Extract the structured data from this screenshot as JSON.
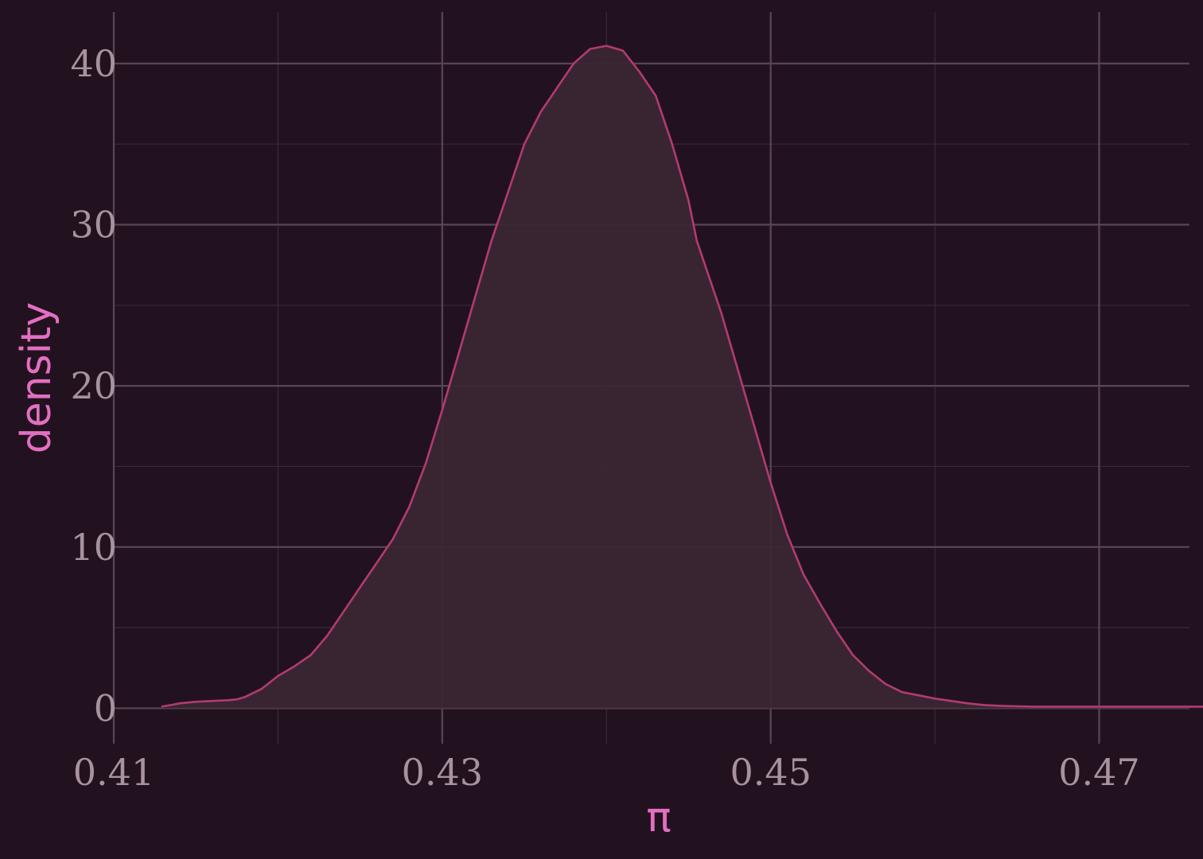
{
  "chart_data": {
    "type": "area",
    "title": "",
    "xlabel": "π",
    "ylabel": "density",
    "xlim": [
      0.41,
      0.4755
    ],
    "ylim": [
      -2.2,
      43.2
    ],
    "x_ticks": [
      0.41,
      0.43,
      0.45,
      0.47
    ],
    "x_tick_labels": [
      "0.41",
      "0.43",
      "0.45",
      "0.47"
    ],
    "x_minor_ticks": [
      0.42,
      0.44,
      0.46,
      0.48
    ],
    "y_ticks": [
      0,
      10,
      20,
      30,
      40
    ],
    "y_tick_labels": [
      "0",
      "10",
      "20",
      "30",
      "40"
    ],
    "y_minor_ticks": [
      5,
      15,
      25,
      35
    ],
    "grid": true,
    "legend": "none",
    "colors": {
      "background": "#22121f",
      "grid_major": "#5a4555",
      "grid_minor": "#3a2836",
      "line": "#b23a72",
      "fill": "#3a2733",
      "tick_label": "#a8929f",
      "axis_title": "#e36fc2"
    },
    "series": [
      {
        "x": [
          0.4129,
          0.4135,
          0.414,
          0.415,
          0.416,
          0.417,
          0.4175,
          0.418,
          0.419,
          0.42,
          0.421,
          0.422,
          0.423,
          0.424,
          0.425,
          0.426,
          0.427,
          0.428,
          0.429,
          0.43,
          0.431,
          0.432,
          0.433,
          0.434,
          0.435,
          0.436,
          0.437,
          0.438,
          0.439,
          0.44,
          0.441,
          0.442,
          0.443,
          0.444,
          0.445,
          0.4455,
          0.446,
          0.447,
          0.448,
          0.449,
          0.45,
          0.451,
          0.452,
          0.453,
          0.454,
          0.455,
          0.456,
          0.457,
          0.458,
          0.459,
          0.46,
          0.461,
          0.462,
          0.463,
          0.464,
          0.465,
          0.466,
          0.467,
          0.468,
          0.469,
          0.47,
          0.471,
          0.472,
          0.473,
          0.474,
          0.475,
          0.476,
          0.477,
          0.478,
          0.479,
          0.48,
          0.481,
          0.4817
        ],
        "y": [
          0.1,
          0.2,
          0.3,
          0.4,
          0.45,
          0.5,
          0.55,
          0.7,
          1.2,
          2.0,
          2.6,
          3.3,
          4.5,
          6.0,
          7.5,
          9.0,
          10.5,
          12.5,
          15.2,
          18.5,
          22.0,
          25.5,
          29.0,
          32.0,
          35.0,
          37.0,
          38.5,
          40.0,
          40.9,
          41.1,
          40.8,
          39.5,
          38.0,
          35.0,
          31.5,
          29.0,
          27.5,
          24.5,
          21.0,
          17.5,
          14.0,
          10.8,
          8.3,
          6.5,
          4.8,
          3.3,
          2.3,
          1.5,
          1.0,
          0.8,
          0.6,
          0.45,
          0.3,
          0.2,
          0.15,
          0.12,
          0.1,
          0.1,
          0.1,
          0.1,
          0.1,
          0.1,
          0.1,
          0.1,
          0.1,
          0.1,
          0.1,
          0.1,
          0.1,
          0.1,
          0.1,
          0.1,
          0.1
        ]
      }
    ]
  }
}
